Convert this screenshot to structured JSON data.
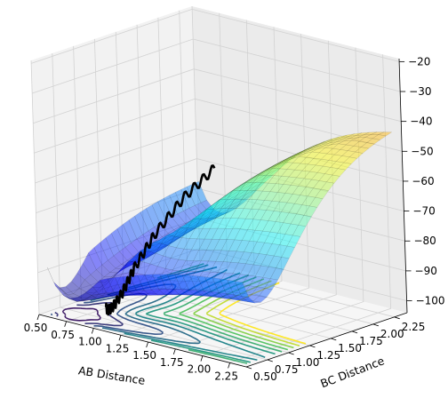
{
  "chart_data": {
    "type": "surface3d",
    "title": "",
    "xlabel": "AB Distance",
    "ylabel": "BC Distance",
    "zlabel": "",
    "xlim": [
      0.5,
      2.4
    ],
    "ylim": [
      0.5,
      2.4
    ],
    "zlim": [
      -104,
      -19
    ],
    "xticks": [
      "0.50",
      "0.75",
      "1.00",
      "1.25",
      "1.50",
      "1.75",
      "2.00",
      "2.25"
    ],
    "yticks": [
      "0.50",
      "0.75",
      "1.00",
      "1.25",
      "1.50",
      "1.75",
      "2.00",
      "2.25"
    ],
    "zticks": [
      "−100",
      "−90",
      "−80",
      "−70",
      "−60",
      "−50",
      "−40",
      "−30",
      "−20"
    ],
    "colormap": "jet",
    "surface_alpha": 0.45,
    "contour_offset_z": -104,
    "contour_levels": [
      -100,
      -97,
      -94,
      -91,
      -88,
      -85,
      -82,
      -79,
      -76,
      -73,
      -70,
      -67
    ],
    "trajectory_color": "#000000",
    "trajectory": {
      "x": [
        0.74,
        0.75,
        0.76,
        0.78,
        0.8,
        0.82,
        0.84,
        0.86,
        0.88,
        0.9,
        0.92,
        0.93,
        0.93
      ],
      "y": [
        2.3,
        2.1,
        1.9,
        1.7,
        1.5,
        1.35,
        1.2,
        1.1,
        1.0,
        0.9,
        0.82,
        0.76,
        0.74
      ],
      "z": [
        -70,
        -73,
        -76,
        -80,
        -84,
        -88,
        -92,
        -95,
        -98,
        -100,
        -101,
        -101,
        -100
      ]
    },
    "grid": true
  }
}
